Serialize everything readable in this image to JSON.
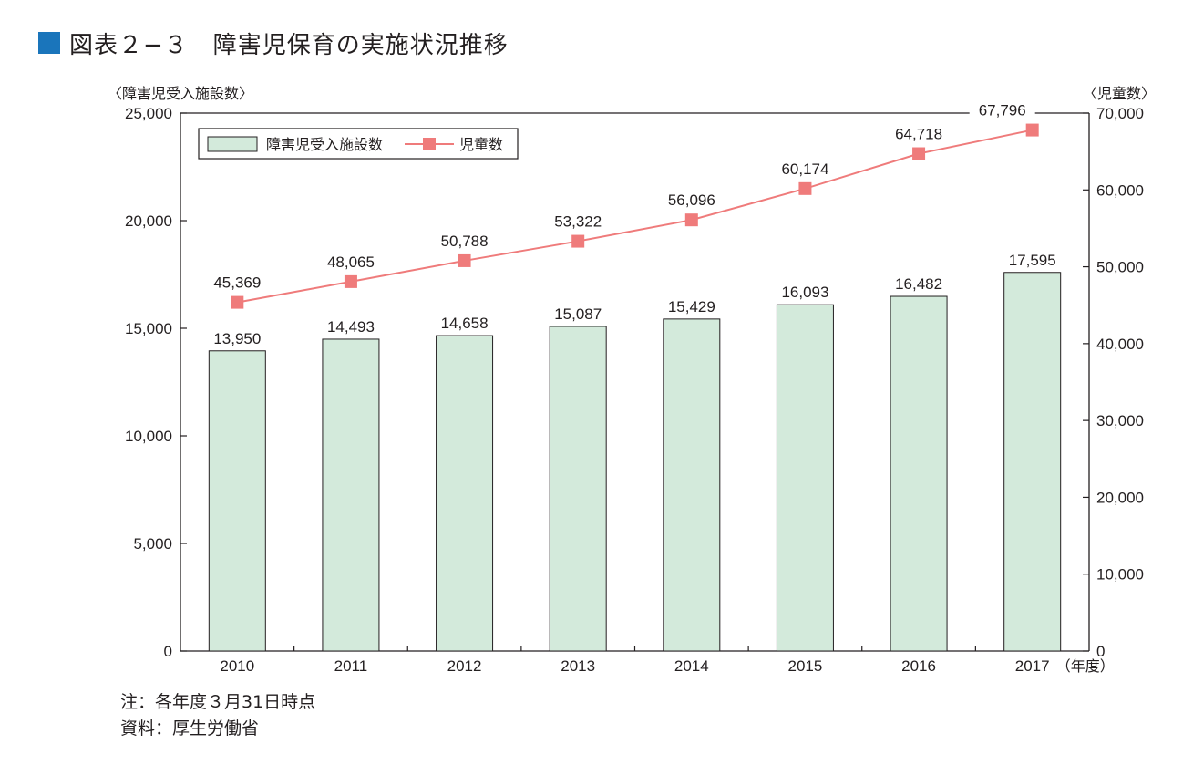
{
  "title": {
    "text": "図表２−３　障害児保育の実施状況推移",
    "square_color": "#1a75bb"
  },
  "notes": {
    "line1": "注：各年度３月31日時点",
    "line2": "資料：厚生労働省"
  },
  "chart_data": {
    "type": "bar+line",
    "categories": [
      "2010",
      "2011",
      "2012",
      "2013",
      "2014",
      "2015",
      "2016",
      "2017"
    ],
    "x_unit": "（年度）",
    "y_left": {
      "label": "〈障害児受入施設数〉",
      "min": 0,
      "max": 25000,
      "step": 5000,
      "tick_labels": [
        "0",
        "5,000",
        "10,000",
        "15,000",
        "20,000",
        "25,000"
      ]
    },
    "y_right": {
      "label": "〈児童数〉",
      "min": 0,
      "max": 70000,
      "step": 10000,
      "tick_labels": [
        "0",
        "10,000",
        "20,000",
        "30,000",
        "40,000",
        "50,000",
        "60,000",
        "70,000"
      ]
    },
    "grid": false,
    "legend_position": "top-left",
    "series": [
      {
        "name": "障害児受入施設数",
        "kind": "bar",
        "axis": "left",
        "color": "#d3eadb",
        "stroke": "#231f20",
        "values": [
          13950,
          14493,
          14658,
          15087,
          15429,
          16093,
          16482,
          17595
        ],
        "labels": [
          "13,950",
          "14,493",
          "14,658",
          "15,087",
          "15,429",
          "16,093",
          "16,482",
          "17,595"
        ]
      },
      {
        "name": "児童数",
        "kind": "line",
        "axis": "right",
        "color": "#ef7b7b",
        "values": [
          45369,
          48065,
          50788,
          53322,
          56096,
          60174,
          64718,
          67796
        ],
        "labels": [
          "45,369",
          "48,065",
          "50,788",
          "53,322",
          "56,096",
          "60,174",
          "64,718",
          "67,796"
        ]
      }
    ]
  }
}
